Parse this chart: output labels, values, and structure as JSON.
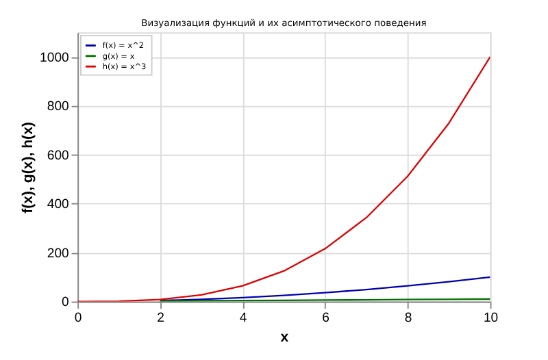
{
  "chart_data": {
    "type": "line",
    "title": "Визуализация функций и их асимптотического поведения",
    "xlabel": "x",
    "ylabel": "f(x), g(x), h(x)",
    "x": [
      0,
      1,
      2,
      3,
      4,
      5,
      6,
      7,
      8,
      9,
      10
    ],
    "series": [
      {
        "name": "f(x) = x^2",
        "color": "#0000b0",
        "values": [
          null,
          null,
          4,
          9,
          16,
          25,
          36,
          49,
          64,
          81,
          100
        ]
      },
      {
        "name": "g(x) = x",
        "color": "#007000",
        "values": [
          null,
          null,
          2,
          3,
          4,
          5,
          6,
          7,
          8,
          9,
          10
        ]
      },
      {
        "name": "h(x) = x^3",
        "color": "#e00000",
        "values": [
          0,
          1,
          8,
          27,
          64,
          125,
          216,
          343,
          512,
          729,
          1000
        ]
      }
    ],
    "xlim": [
      0,
      10
    ],
    "xticks": [
      0,
      2,
      4,
      6,
      8,
      10
    ],
    "ylim": [
      0,
      1100
    ],
    "yticks": [
      0,
      200,
      400,
      600,
      800,
      {
        "value": 1000,
        "label": "1000"
      }
    ],
    "grid": true,
    "legend": "top left",
    "marker": "none",
    "line_style": "solid"
  }
}
